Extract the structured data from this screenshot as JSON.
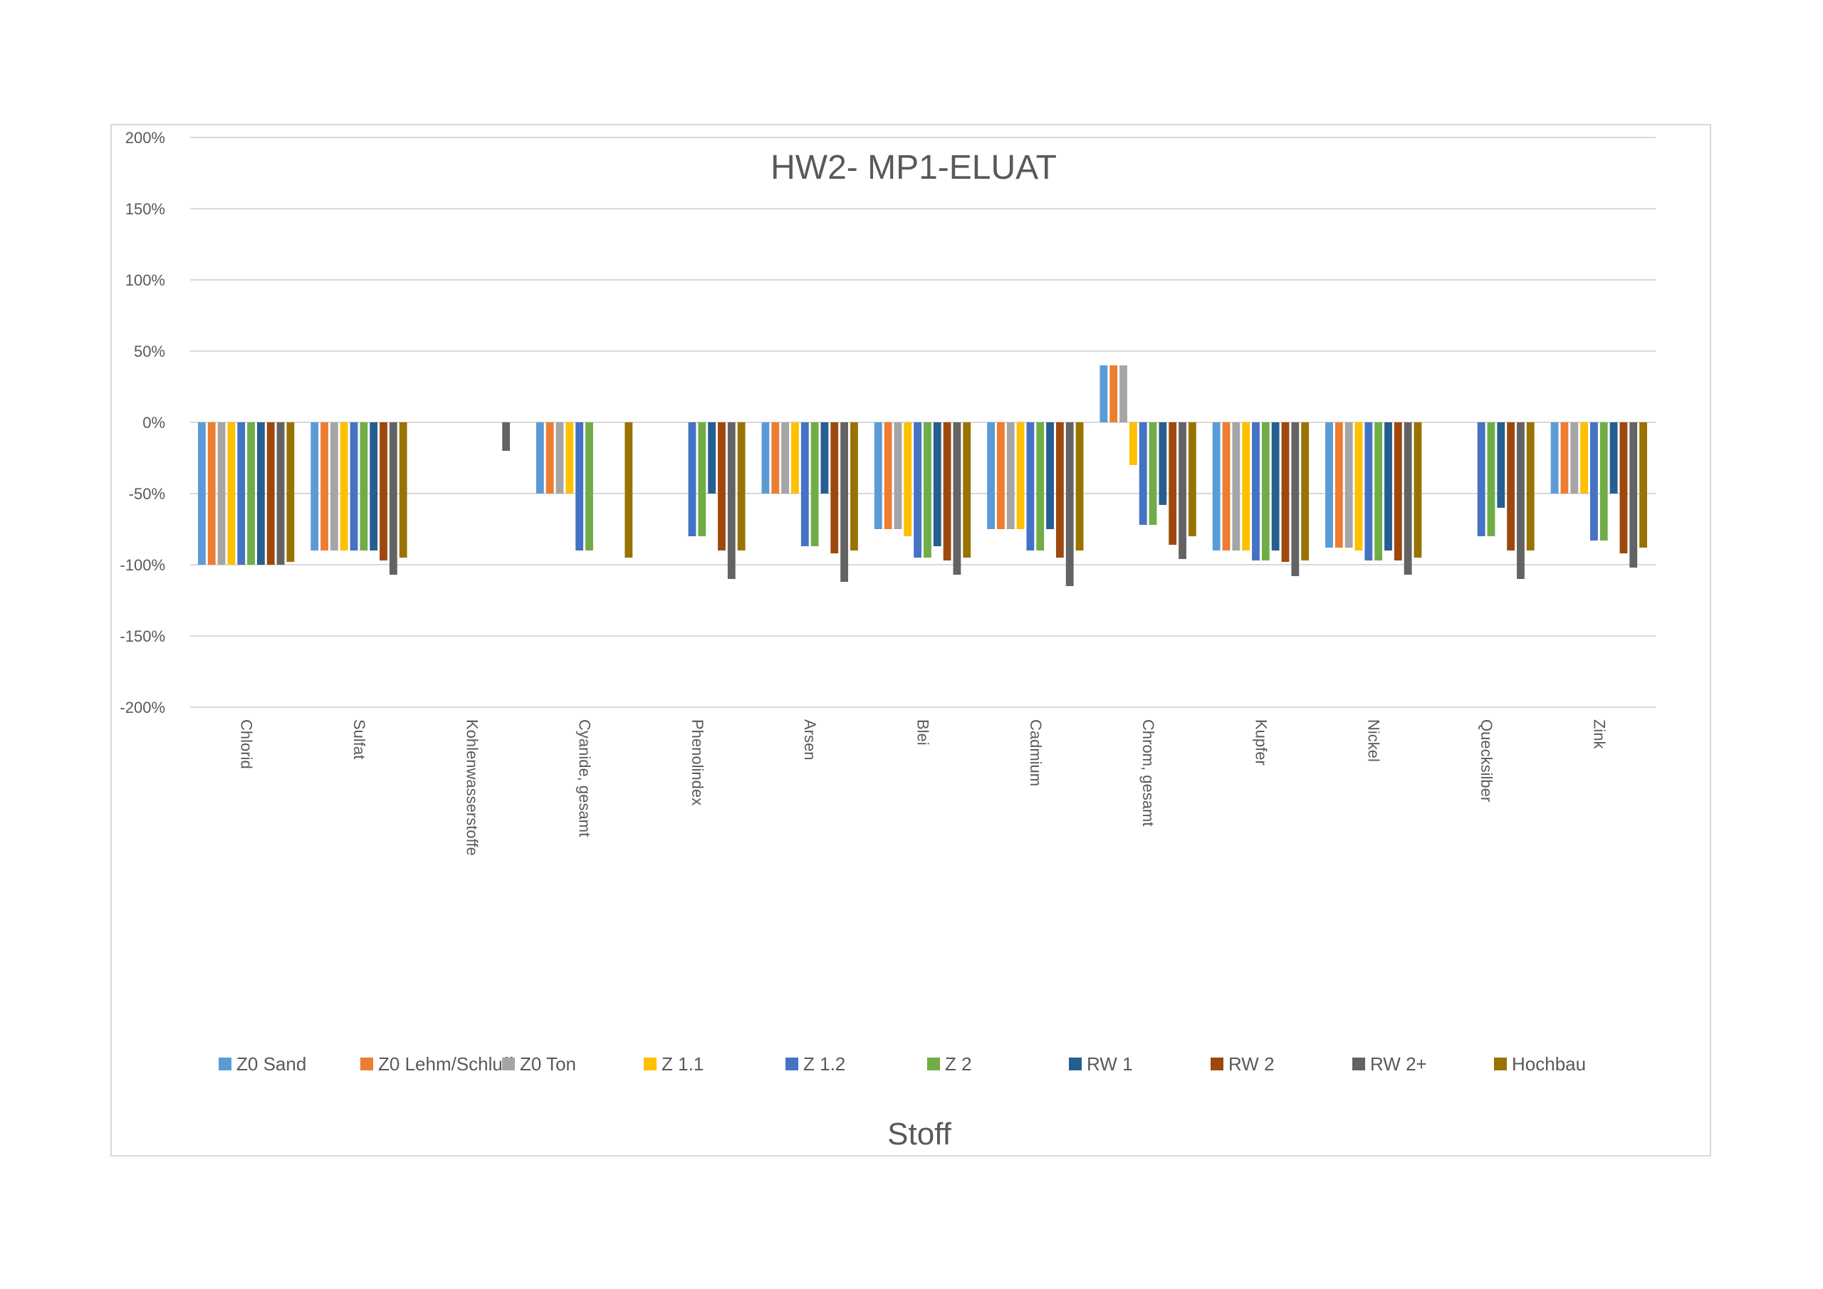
{
  "chart_data": {
    "type": "bar",
    "title": "HW2- MP1-ELUAT",
    "xlabel": "Stoff",
    "ylabel": "",
    "ylim": [
      -200,
      200
    ],
    "ytick_step": 50,
    "y_tick_labels": [
      "200%",
      "150%",
      "100%",
      "50%",
      "0%",
      "-50%",
      "-100%",
      "-150%",
      "-200%"
    ],
    "grid": true,
    "legend_position": "bottom",
    "categories": [
      "Chlorid",
      "Sulfat",
      "Kohlenwasserstoffe",
      "Cyanide, gesamt",
      "Phenolindex",
      "Arsen",
      "Blei",
      "Cadmium",
      "Chrom, gesamt",
      "Kupfer",
      "Nickel",
      "Quecksilber",
      "Zink"
    ],
    "series": [
      {
        "name": "Z0 Sand",
        "color": "#5b9bd5",
        "values": [
          -100,
          -90,
          null,
          -50,
          null,
          -50,
          -75,
          -75,
          40,
          -90,
          -88,
          null,
          -50
        ]
      },
      {
        "name": "Z0 Lehm/Schluff",
        "color": "#ed7d31",
        "values": [
          -100,
          -90,
          null,
          -50,
          null,
          -50,
          -75,
          -75,
          40,
          -90,
          -88,
          null,
          -50
        ]
      },
      {
        "name": "Z0 Ton",
        "color": "#a5a5a5",
        "values": [
          -100,
          -90,
          null,
          -50,
          null,
          -50,
          -75,
          -75,
          40,
          -90,
          -88,
          null,
          -50
        ]
      },
      {
        "name": "Z 1.1",
        "color": "#ffc000",
        "values": [
          -100,
          -90,
          null,
          -50,
          null,
          -50,
          -80,
          -75,
          -30,
          -90,
          -90,
          null,
          -50
        ]
      },
      {
        "name": "Z 1.2",
        "color": "#4472c4",
        "values": [
          -100,
          -90,
          null,
          -90,
          -80,
          -87,
          -95,
          -90,
          -72,
          -97,
          -97,
          -80,
          -83
        ]
      },
      {
        "name": "Z 2",
        "color": "#70ad47",
        "values": [
          -100,
          -90,
          null,
          -90,
          -80,
          -87,
          -95,
          -90,
          -72,
          -97,
          -97,
          -80,
          -83
        ]
      },
      {
        "name": "RW 1",
        "color": "#255e91",
        "values": [
          -100,
          -90,
          null,
          null,
          -50,
          -50,
          -87,
          -75,
          -58,
          -90,
          -90,
          -60,
          -50
        ]
      },
      {
        "name": "RW 2",
        "color": "#9e480e",
        "values": [
          -100,
          -97,
          null,
          null,
          -90,
          -92,
          -97,
          -95,
          -86,
          -98,
          -97,
          -90,
          -92
        ]
      },
      {
        "name": "RW 2+",
        "color": "#636363",
        "values": [
          -100,
          -107,
          -20,
          null,
          -110,
          -112,
          -107,
          -115,
          -96,
          -108,
          -107,
          -110,
          -102
        ]
      },
      {
        "name": "Hochbau",
        "color": "#997300",
        "values": [
          -98,
          -95,
          null,
          -95,
          -90,
          -90,
          -95,
          -90,
          -80,
          -97,
          -95,
          -90,
          -88
        ]
      }
    ]
  }
}
